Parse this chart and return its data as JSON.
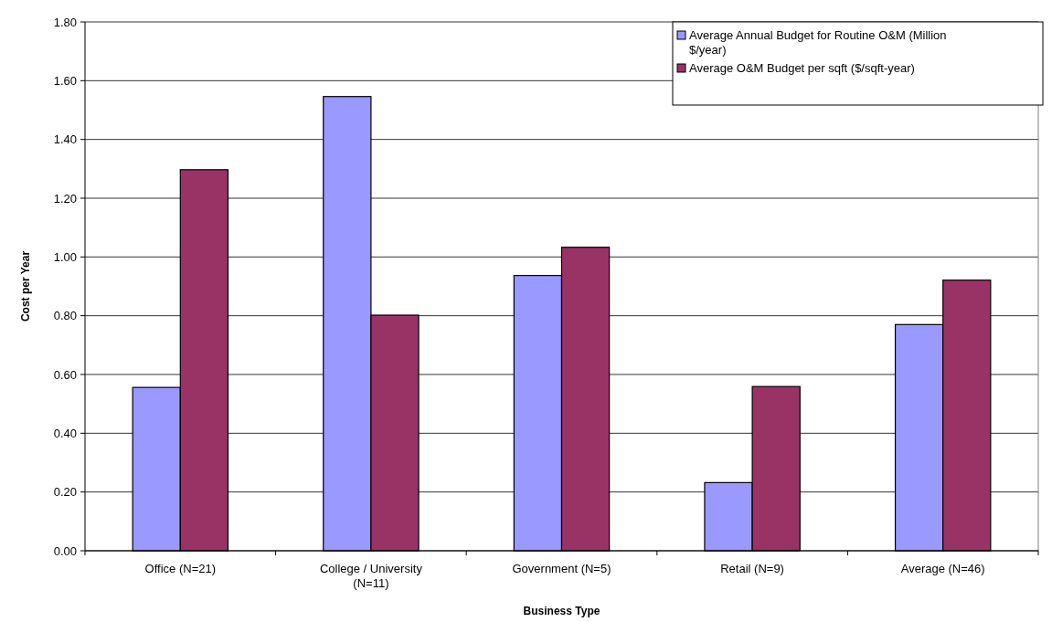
{
  "chart_data": {
    "type": "bar",
    "xlabel": "Business Type",
    "ylabel": "Cost per Year",
    "categories": [
      "Office (N=21)",
      "College / University (N=11)",
      "Government (N=5)",
      "Retail (N=9)",
      "Average (N=46)"
    ],
    "series": [
      {
        "name": "Average Annual Budget for Routine O&M (Million $/year)",
        "color": "#9999ff",
        "values": [
          0.556,
          1.546,
          0.937,
          0.232,
          0.77
        ]
      },
      {
        "name": "Average O&M Budget per sqft ($/sqft-year)",
        "color": "#993366",
        "values": [
          1.297,
          0.802,
          1.033,
          0.559,
          0.921
        ]
      }
    ],
    "ylim": [
      0,
      1.8
    ],
    "yticks": [
      {
        "value": 0,
        "label": "0.00"
      },
      {
        "value": 0.2,
        "label": "0.20"
      },
      {
        "value": 0.4,
        "label": "0.40"
      },
      {
        "value": 0.6,
        "label": "0.60"
      },
      {
        "value": 0.8,
        "label": "0.80"
      },
      {
        "value": 1,
        "label": "1.00"
      },
      {
        "value": 1.2,
        "label": "1.20"
      },
      {
        "value": 1.4,
        "label": "1.40"
      },
      {
        "value": 1.6,
        "label": "1.60"
      },
      {
        "value": 1.8,
        "label": "1.80"
      }
    ],
    "grid": "y",
    "legend": "top right"
  }
}
